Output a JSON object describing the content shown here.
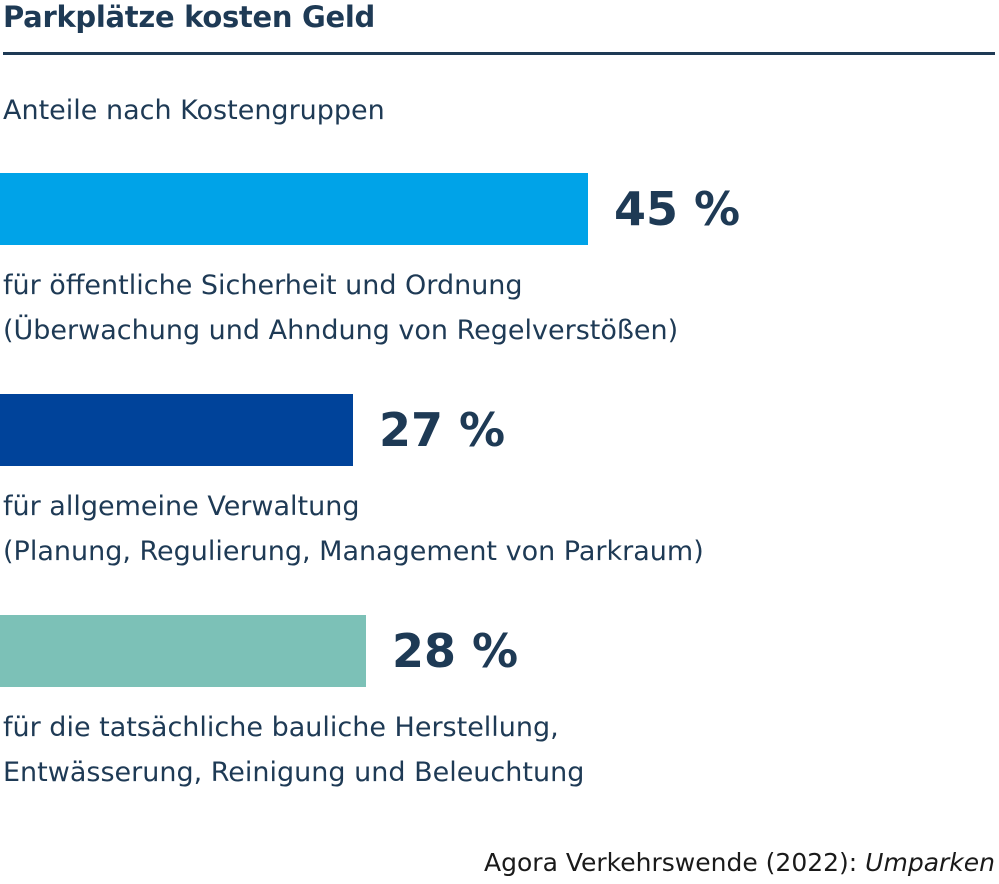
{
  "title": "Parkplätze kosten Geld",
  "subtitle": "Anteile nach Kostengruppen",
  "chart_data": {
    "type": "bar",
    "orientation": "horizontal",
    "title": "Parkplätze kosten Geld",
    "subtitle": "Anteile nach Kostengruppen",
    "categories": [
      "für öffentliche Sicherheit und Ordnung (Überwachung und Ahndung von Regelverstößen)",
      "für allgemeine Verwaltung (Planung, Regulierung, Management von Parkraum)",
      "für die tatsächliche bauliche Herstellung, Entwässerung, Reinigung und Beleuchtung"
    ],
    "values": [
      45,
      27,
      28
    ],
    "unit": "%",
    "grid": false,
    "legend": "none",
    "bars": [
      {
        "value": 45,
        "label": "45 %",
        "color": "#00a3e8",
        "desc_lines": [
          "für öffentliche Sicherheit und Ordnung",
          "(Überwachung und Ahndung von Regelverstößen)"
        ]
      },
      {
        "value": 27,
        "label": "27 %",
        "color": "#00439a",
        "desc_lines": [
          "für allgemeine Verwaltung",
          "(Planung, Regulierung, Management von Parkraum)"
        ]
      },
      {
        "value": 28,
        "label": "28 %",
        "color": "#7cc1b7",
        "desc_lines": [
          "für die tatsächliche bauliche Herstellung,",
          "Entwässerung, Reinigung und Beleuchtung"
        ]
      }
    ]
  },
  "source": {
    "org": "Agora Verkehrswende",
    "year": "(2022):",
    "publication": "Umparken"
  }
}
